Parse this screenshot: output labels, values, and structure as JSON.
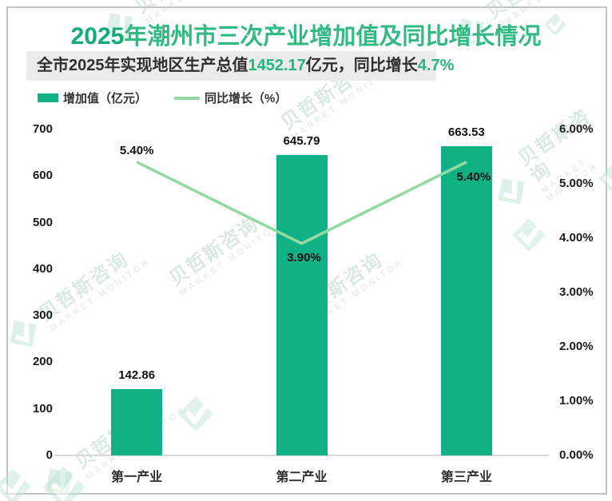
{
  "header": {
    "title_highlight": "2025",
    "title_rest": "年潮州市三次产业增加值及同比增长情况",
    "subtitle": {
      "text_1": "全市2025年实现地区生产总值",
      "value_1": "1452.17",
      "text_2": "亿元，同比增长",
      "value_2": "4.7%"
    }
  },
  "legend": {
    "bar_label": "增加值（亿元）",
    "line_label": "同比增长（%）"
  },
  "watermark": {
    "cn": "贝哲斯咨询",
    "en": "MARKET MONITOR"
  },
  "colors": {
    "bar": "#10b185",
    "line": "#93d9a4",
    "title_num": "#12ab7c",
    "title_cn": "#31ba81",
    "subtitle_highlight": "#27b57e",
    "subtitle_bg": "#ebebeb",
    "frame_border": "#c3c3c3",
    "axis_line": "#d8d8d8",
    "text_dark": "#1a1a1a"
  },
  "chart_data": {
    "type": "bar",
    "title": "2025年潮州市三次产业增加值及同比增长情况",
    "categories": [
      "第一产业",
      "第二产业",
      "第三产业"
    ],
    "series": [
      {
        "name": "增加值（亿元）",
        "type": "bar",
        "axis": "left",
        "values": [
          142.86,
          645.79,
          663.53
        ],
        "labels": [
          "142.86",
          "645.79",
          "663.53"
        ]
      },
      {
        "name": "同比增长（%）",
        "type": "line",
        "axis": "right",
        "values": [
          5.4,
          3.9,
          5.4
        ],
        "labels": [
          "5.40%",
          "3.90%",
          "5.40%"
        ]
      }
    ],
    "left_axis": {
      "min": 0,
      "max": 700,
      "tick_step": 100,
      "ticks": [
        "0",
        "100",
        "200",
        "300",
        "400",
        "500",
        "600",
        "700"
      ]
    },
    "right_axis": {
      "min": 0,
      "max": 6,
      "ticks": [
        "0.00%",
        "1.00%",
        "2.00%",
        "3.00%",
        "4.00%",
        "5.00%",
        "6.00%"
      ]
    },
    "grid": false,
    "legend_position": "top-left",
    "xlabel": "",
    "ylabel_left": "",
    "ylabel_right": ""
  }
}
